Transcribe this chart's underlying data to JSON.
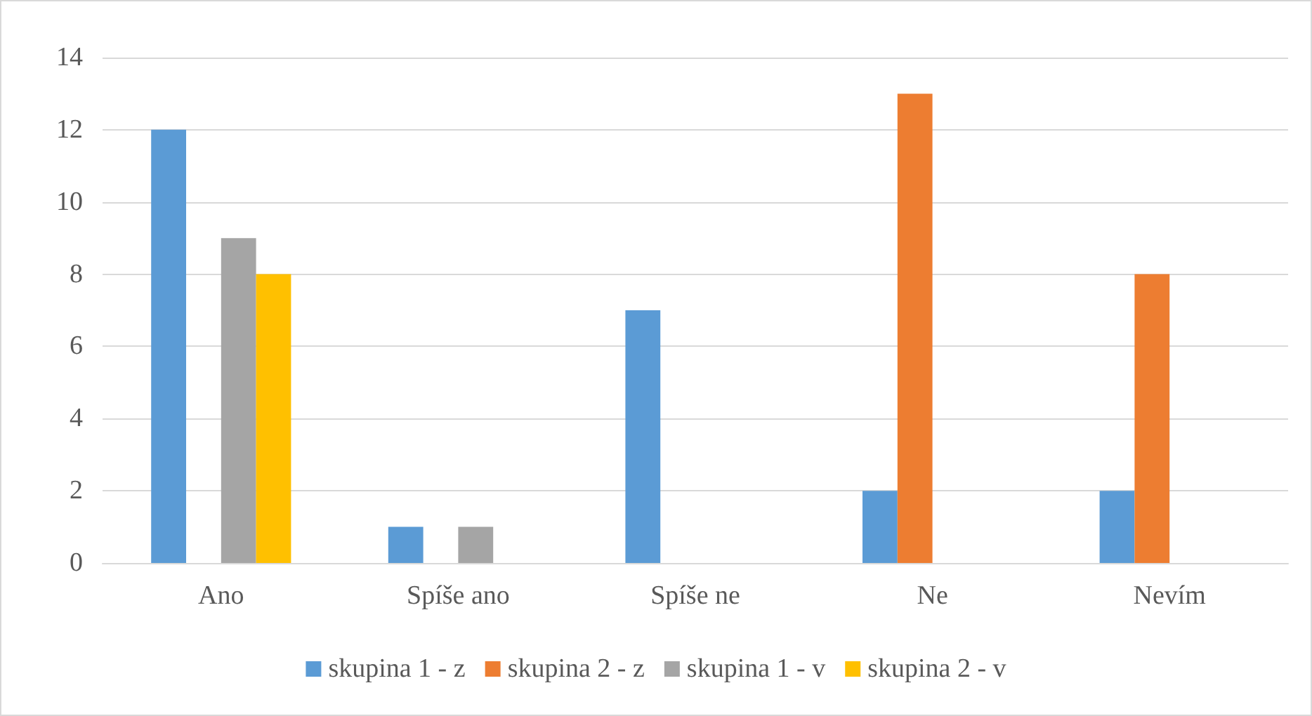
{
  "chart_data": {
    "type": "bar",
    "categories": [
      "Ano",
      "Spíše ano",
      "Spíše ne",
      "Ne",
      "Nevím"
    ],
    "series": [
      {
        "name": "skupina 1 - z",
        "color": "#5b9bd5",
        "values": [
          12,
          1,
          7,
          2,
          2
        ]
      },
      {
        "name": "skupina 2 - z",
        "color": "#ed7d31",
        "values": [
          0,
          0,
          0,
          13,
          8
        ]
      },
      {
        "name": "skupina 1 - v",
        "color": "#a5a5a5",
        "values": [
          9,
          1,
          0,
          0,
          0
        ]
      },
      {
        "name": "skupina 2 - v",
        "color": "#ffc000",
        "values": [
          8,
          0,
          0,
          0,
          0
        ]
      }
    ],
    "ylim": [
      0,
      14
    ],
    "yticks": [
      0,
      2,
      4,
      6,
      8,
      10,
      12,
      14
    ],
    "grid": "y",
    "legend": "bottom"
  }
}
